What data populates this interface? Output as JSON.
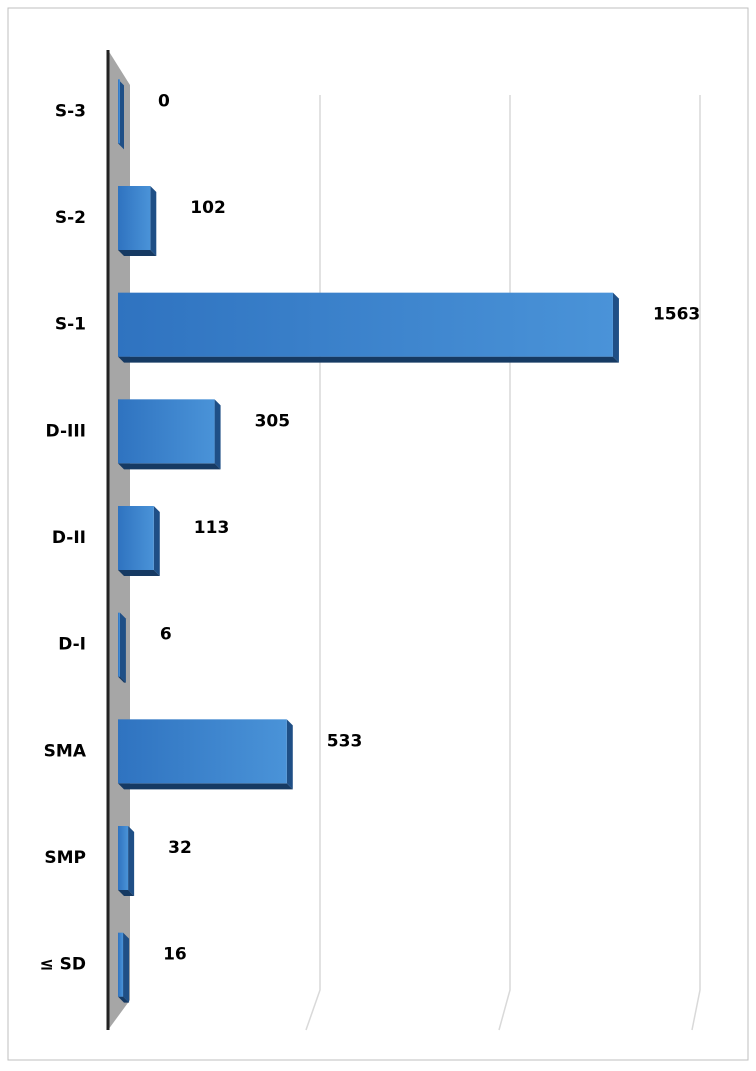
{
  "chart_data": {
    "type": "bar",
    "categories": [
      "S-3",
      "S-2",
      "S-1",
      "D-III",
      "D-II",
      "D-I",
      "SMA",
      "SMP",
      "≤ SD"
    ],
    "values": [
      0,
      102,
      1563,
      305,
      113,
      6,
      533,
      32,
      16
    ],
    "color": "#2e75c8",
    "xlim": [
      0,
      1800
    ],
    "xticks": [
      0,
      600,
      1200,
      1800
    ],
    "grid": true
  }
}
